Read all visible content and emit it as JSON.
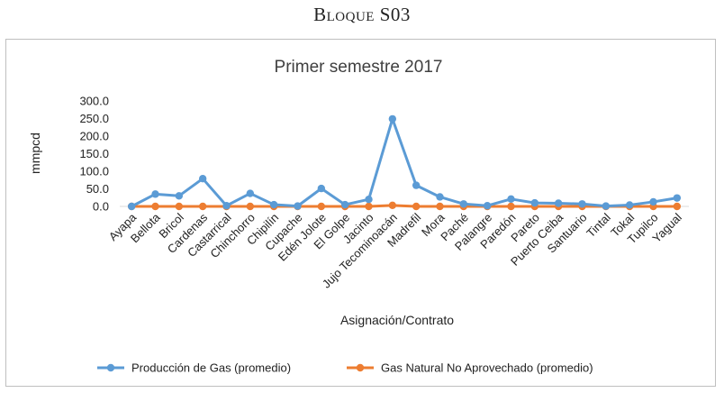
{
  "heading": "Bloque S03",
  "chart_data": {
    "type": "line",
    "title": "Primer semestre 2017",
    "xlabel": "Asignación/Contrato",
    "ylabel": "mmpcd",
    "ylim": [
      0,
      300
    ],
    "yticks": [
      "0.0",
      "50.0",
      "100.0",
      "150.0",
      "200.0",
      "250.0",
      "300.0"
    ],
    "categories": [
      "Ayapa",
      "Bellota",
      "Bricol",
      "Cardenas",
      "Castarrical",
      "Chinchorro",
      "Chipilín",
      "Cupache",
      "Edén Jolote",
      "El Golpe",
      "Jacinto",
      "Jujo Tecominoacán",
      "Madrefil",
      "Mora",
      "Paché",
      "Palangre",
      "Paredón",
      "Pareto",
      "Puerto Ceiba",
      "Santuario",
      "Tintal",
      "Tokal",
      "Tupilco",
      "Yagual"
    ],
    "series": [
      {
        "name": "Producción de Gas (promedio)",
        "color": "#5b9bd5",
        "values": [
          0,
          35,
          30,
          79,
          2,
          37,
          5,
          1,
          51,
          5,
          20,
          249,
          60,
          27,
          7,
          2,
          21,
          10,
          9,
          7,
          1,
          4,
          13,
          24
        ]
      },
      {
        "name": "Gas Natural No Aprovechado  (promedio)",
        "color": "#ed7d31",
        "values": [
          0,
          0,
          0,
          0,
          0,
          0,
          0,
          0,
          0,
          0,
          0,
          3,
          0,
          0,
          0,
          0,
          0,
          0,
          0,
          0,
          0,
          0,
          0,
          0
        ]
      }
    ],
    "grid": false,
    "legend": "bottom"
  }
}
